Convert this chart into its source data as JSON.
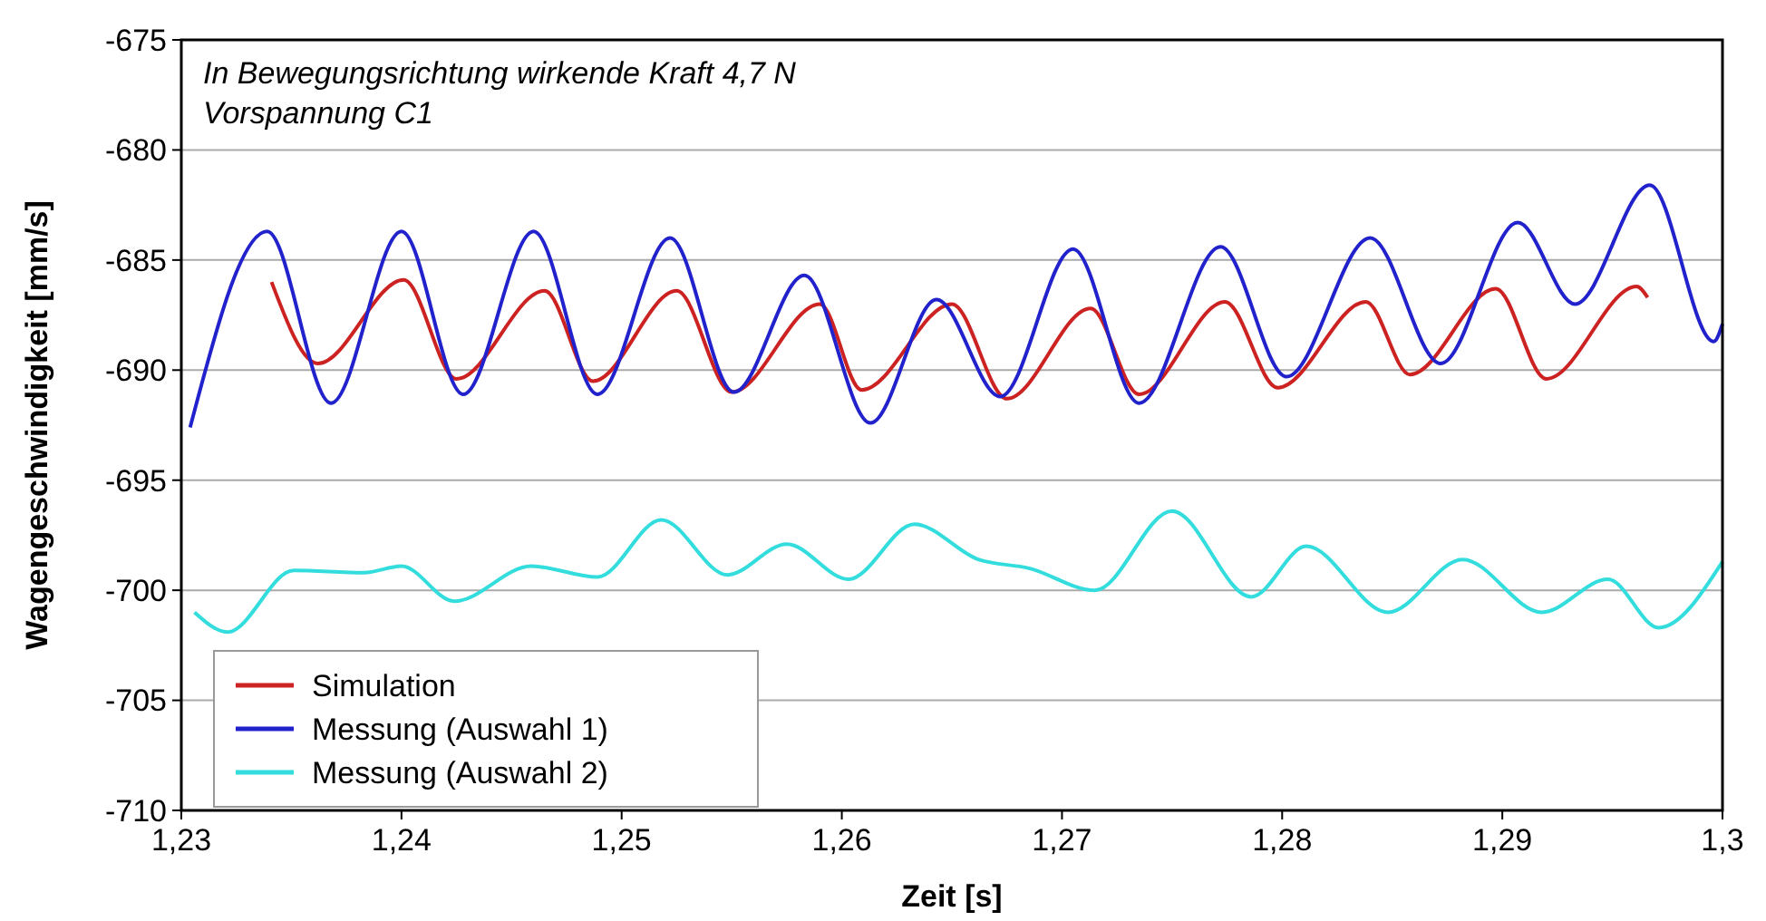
{
  "chart_data": {
    "type": "line",
    "xlabel": "Zeit [s]",
    "ylabel": "Wagengeschwindigkeit [mm/s]",
    "annotations": [
      "In Bewegungsrichtung wirkende Kraft 4,7 N",
      "Vorspannung C1"
    ],
    "xlim": [
      1.23,
      1.3
    ],
    "xticks": [
      {
        "value": 1.23,
        "label": "1,23"
      },
      {
        "value": 1.24,
        "label": "1,24"
      },
      {
        "value": 1.25,
        "label": "1,25"
      },
      {
        "value": 1.26,
        "label": "1,26"
      },
      {
        "value": 1.27,
        "label": "1,27"
      },
      {
        "value": 1.28,
        "label": "1,28"
      },
      {
        "value": 1.29,
        "label": "1,29"
      },
      {
        "value": 1.3,
        "label": "1,3"
      }
    ],
    "ylim": [
      -710,
      -675
    ],
    "yticks": [
      -710,
      -705,
      -700,
      -695,
      -690,
      -685,
      -680,
      -675
    ],
    "grid": "y",
    "legend": "bottom left",
    "line_style": "solid",
    "series": [
      {
        "name": "Simulation",
        "color": "#cc2222",
        "x": [
          1.2341,
          1.2362,
          1.2401,
          1.2425,
          1.2465,
          1.2487,
          1.2525,
          1.255,
          1.259,
          1.2609,
          1.265,
          1.2675,
          1.2713,
          1.2735,
          1.2774,
          1.2798,
          1.2838,
          1.2858,
          1.2897,
          1.292,
          1.2961,
          1.2966
        ],
        "values": [
          -686.0,
          -689.7,
          -685.9,
          -690.4,
          -686.4,
          -690.5,
          -686.4,
          -691.0,
          -687.0,
          -690.9,
          -687.0,
          -691.3,
          -687.2,
          -691.1,
          -686.9,
          -690.8,
          -686.9,
          -690.2,
          -686.3,
          -690.4,
          -686.2,
          -686.7
        ]
      },
      {
        "name": "Messung (Auswahl 1)",
        "color": "#2222cc",
        "x": [
          1.2304,
          1.2339,
          1.2368,
          1.24,
          1.2428,
          1.246,
          1.2489,
          1.2522,
          1.2551,
          1.2583,
          1.2613,
          1.2643,
          1.2672,
          1.2705,
          1.2735,
          1.2772,
          1.2802,
          1.284,
          1.2872,
          1.2907,
          1.2933,
          1.2967,
          1.2996,
          1.3
        ],
        "values": [
          -692.6,
          -683.7,
          -691.5,
          -683.7,
          -691.1,
          -683.7,
          -691.1,
          -684.0,
          -691.0,
          -685.7,
          -692.4,
          -686.8,
          -691.2,
          -684.5,
          -691.5,
          -684.4,
          -690.3,
          -684.0,
          -689.7,
          -683.3,
          -687.0,
          -681.6,
          -688.7,
          -687.9
        ]
      },
      {
        "name": "Messung (Auswahl 2)",
        "color": "#33dddd",
        "x": [
          1.2306,
          1.2321,
          1.2351,
          1.2383,
          1.24,
          1.2424,
          1.2459,
          1.2489,
          1.2518,
          1.2548,
          1.2575,
          1.2603,
          1.2633,
          1.2662,
          1.2685,
          1.2715,
          1.275,
          1.2786,
          1.2811,
          1.2848,
          1.2882,
          1.2918,
          1.2948,
          1.2971,
          1.3
        ],
        "values": [
          -701.0,
          -701.9,
          -699.1,
          -699.2,
          -698.9,
          -700.5,
          -698.9,
          -699.4,
          -696.8,
          -699.3,
          -697.9,
          -699.5,
          -697.0,
          -698.6,
          -699.0,
          -700.0,
          -696.4,
          -700.3,
          -698.0,
          -701.0,
          -698.6,
          -701.0,
          -699.5,
          -701.7,
          -698.7
        ]
      }
    ]
  }
}
